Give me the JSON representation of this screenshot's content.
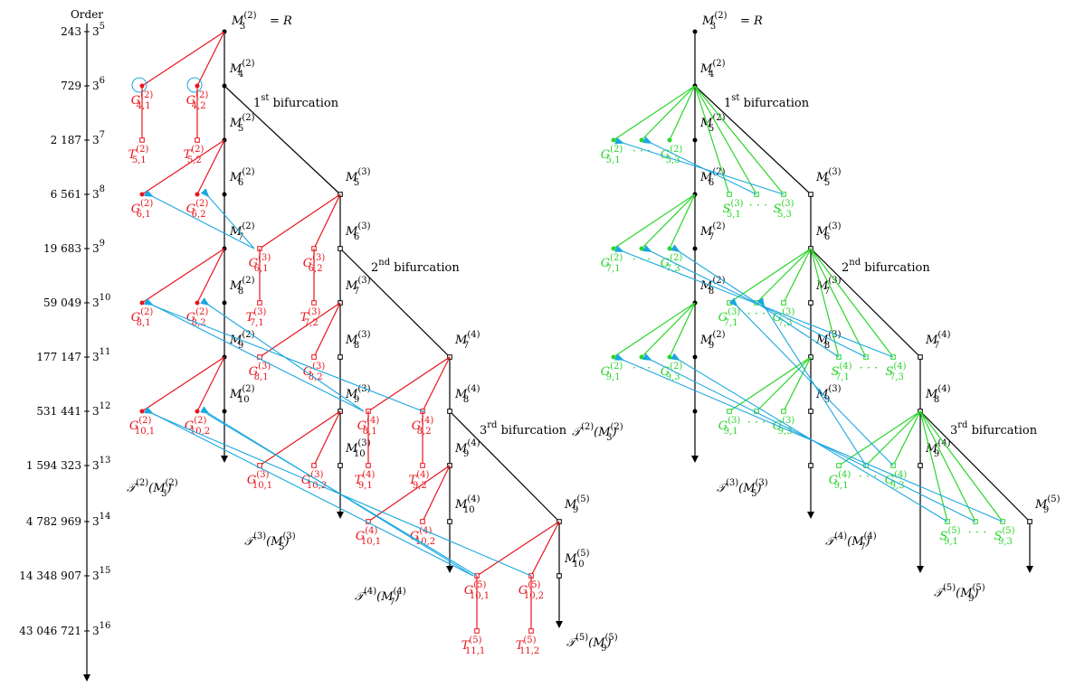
{
  "order_axis": {
    "title": "Order",
    "rows": [
      {
        "order": "243",
        "power": "3",
        "exp": "5"
      },
      {
        "order": "729",
        "power": "3",
        "exp": "6"
      },
      {
        "order": "2 187",
        "power": "3",
        "exp": "7"
      },
      {
        "order": "6 561",
        "power": "3",
        "exp": "8"
      },
      {
        "order": "19 683",
        "power": "3",
        "exp": "9"
      },
      {
        "order": "59 049",
        "power": "3",
        "exp": "10"
      },
      {
        "order": "177 147",
        "power": "3",
        "exp": "11"
      },
      {
        "order": "531 441",
        "power": "3",
        "exp": "12"
      },
      {
        "order": "1 594 323",
        "power": "3",
        "exp": "13"
      },
      {
        "order": "4 782 969",
        "power": "3",
        "exp": "14"
      },
      {
        "order": "14 348 907",
        "power": "3",
        "exp": "15"
      },
      {
        "order": "43 046 721",
        "power": "3",
        "exp": "16"
      }
    ]
  },
  "bifurcations": {
    "first": {
      "ord": "1",
      "sup": "st",
      "word": "bifurcation"
    },
    "second": {
      "ord": "2",
      "sup": "nd",
      "word": "bifurcation"
    },
    "third": {
      "ord": "3",
      "sup": "rd",
      "word": "bifurcation"
    }
  },
  "root_label": {
    "base": "M",
    "sub": "3",
    "sup": "(2)",
    "tail": " = R"
  },
  "colors": {
    "trunk": "#000000",
    "red": "#e8141c",
    "green": "#2ad52a",
    "cyan": "#1aa8e0",
    "circle": "#1aa8e0"
  },
  "left_tree": {
    "trunks": [
      {
        "sup": "(2)",
        "nodes": [
          "3",
          "4",
          "5",
          "6",
          "7",
          "8",
          "9",
          "10"
        ],
        "label": {
          "base": "T",
          "sup": "(2)",
          "arg_base": "M",
          "arg_sub": "3",
          "arg_sup": "(2)"
        }
      },
      {
        "sup": "(3)",
        "nodes": [
          "5",
          "6",
          "7",
          "8",
          "9",
          "10"
        ],
        "label": {
          "base": "T",
          "sup": "(3)",
          "arg_base": "M",
          "arg_sub": "5",
          "arg_sup": "(3)"
        }
      },
      {
        "sup": "(4)",
        "nodes": [
          "7",
          "8",
          "9",
          "10"
        ],
        "label": {
          "base": "T",
          "sup": "(4)",
          "arg_base": "M",
          "arg_sub": "7",
          "arg_sup": "(4)"
        }
      },
      {
        "sup": "(5)",
        "nodes": [
          "9",
          "10"
        ],
        "label": {
          "base": "T",
          "sup": "(5)",
          "arg_base": "M",
          "arg_sub": "9",
          "arg_sup": "(5)"
        }
      }
    ],
    "leaves": [
      {
        "base": "G",
        "sup": "(2)",
        "sub": "4,1"
      },
      {
        "base": "G",
        "sup": "(2)",
        "sub": "4,2"
      },
      {
        "base": "T",
        "sup": "(2)",
        "sub": "5,1"
      },
      {
        "base": "T",
        "sup": "(2)",
        "sub": "5,2"
      },
      {
        "base": "G",
        "sup": "(2)",
        "sub": "6,1"
      },
      {
        "base": "G",
        "sup": "(2)",
        "sub": "6,2"
      },
      {
        "base": "G",
        "sup": "(3)",
        "sub": "6,1"
      },
      {
        "base": "G",
        "sup": "(3)",
        "sub": "6,2"
      },
      {
        "base": "T",
        "sup": "(3)",
        "sub": "7,1"
      },
      {
        "base": "T",
        "sup": "(3)",
        "sub": "7,2"
      },
      {
        "base": "G",
        "sup": "(2)",
        "sub": "8,1"
      },
      {
        "base": "G",
        "sup": "(2)",
        "sub": "8,2"
      },
      {
        "base": "G",
        "sup": "(3)",
        "sub": "8,1"
      },
      {
        "base": "G",
        "sup": "(3)",
        "sub": "8,2"
      },
      {
        "base": "G",
        "sup": "(4)",
        "sub": "8,1"
      },
      {
        "base": "G",
        "sup": "(4)",
        "sub": "8,2"
      },
      {
        "base": "G",
        "sup": "(2)",
        "sub": "10,1"
      },
      {
        "base": "G",
        "sup": "(2)",
        "sub": "10,2"
      },
      {
        "base": "G",
        "sup": "(3)",
        "sub": "10,1"
      },
      {
        "base": "G",
        "sup": "(3)",
        "sub": "10,2"
      },
      {
        "base": "T",
        "sup": "(4)",
        "sub": "9,1"
      },
      {
        "base": "T",
        "sup": "(4)",
        "sub": "9,2"
      },
      {
        "base": "G",
        "sup": "(4)",
        "sub": "10,1"
      },
      {
        "base": "G",
        "sup": "(4)",
        "sub": "10,2"
      },
      {
        "base": "G",
        "sup": "(5)",
        "sub": "10,1"
      },
      {
        "base": "G",
        "sup": "(5)",
        "sub": "10,2"
      },
      {
        "base": "T",
        "sup": "(5)",
        "sub": "11,1"
      },
      {
        "base": "T",
        "sup": "(5)",
        "sub": "11,2"
      }
    ]
  },
  "right_tree": {
    "leaves": [
      {
        "base": "G",
        "sup": "(2)",
        "sub": "5,1"
      },
      {
        "base": "G",
        "sup": "(2)",
        "sub": "5,3"
      },
      {
        "base": "S",
        "sup": "(3)",
        "sub": "5,1"
      },
      {
        "base": "S",
        "sup": "(3)",
        "sub": "5,3"
      },
      {
        "base": "G",
        "sup": "(2)",
        "sub": "7,1"
      },
      {
        "base": "G",
        "sup": "(2)",
        "sub": "7,3"
      },
      {
        "base": "G",
        "sup": "(3)",
        "sub": "7,1"
      },
      {
        "base": "G",
        "sup": "(3)",
        "sub": "7,3"
      },
      {
        "base": "G",
        "sup": "(2)",
        "sub": "9,1"
      },
      {
        "base": "G",
        "sup": "(2)",
        "sub": "9,3"
      },
      {
        "base": "S",
        "sup": "(4)",
        "sub": "7,1"
      },
      {
        "base": "S",
        "sup": "(4)",
        "sub": "7,3"
      },
      {
        "base": "G",
        "sup": "(3)",
        "sub": "9,1"
      },
      {
        "base": "G",
        "sup": "(3)",
        "sub": "9,3"
      },
      {
        "base": "G",
        "sup": "(4)",
        "sub": "9,1"
      },
      {
        "base": "G",
        "sup": "(4)",
        "sub": "9,3"
      },
      {
        "base": "S",
        "sup": "(5)",
        "sub": "9,1"
      },
      {
        "base": "S",
        "sup": "(5)",
        "sub": "9,3"
      }
    ],
    "dots": "· · ·"
  }
}
